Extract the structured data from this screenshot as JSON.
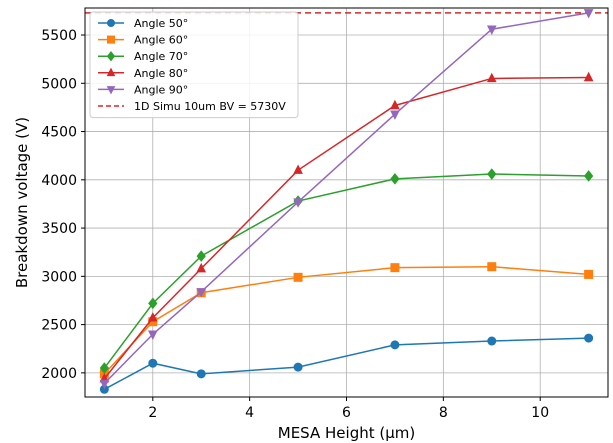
{
  "chart_data": {
    "type": "line",
    "title": "",
    "xlabel": "MESA Height (µm)",
    "ylabel": "Breakdown voltage (V)",
    "xlim": [
      0.6,
      11.4
    ],
    "ylim": [
      1750,
      5780
    ],
    "xticks": [
      2,
      4,
      6,
      8,
      10
    ],
    "yticks": [
      2000,
      2500,
      3000,
      3500,
      4000,
      4500,
      5000,
      5500
    ],
    "grid": true,
    "legend_position": "top-left",
    "x": [
      1,
      2,
      3,
      5,
      7,
      9,
      11
    ],
    "series": [
      {
        "name": "Angle 50°",
        "color": "#1f77b4",
        "marker": "circle",
        "values": [
          1830,
          2100,
          1990,
          2060,
          2290,
          2330,
          2360
        ]
      },
      {
        "name": "Angle 60°",
        "color": "#ff7f0e",
        "marker": "square",
        "values": [
          1990,
          2530,
          2830,
          2990,
          3090,
          3100,
          3020
        ]
      },
      {
        "name": "Angle 70°",
        "color": "#2ca02c",
        "marker": "diamond",
        "values": [
          2050,
          2720,
          3210,
          3780,
          4010,
          4060,
          4040
        ]
      },
      {
        "name": "Angle 80°",
        "color": "#d62728",
        "marker": "triangle-up",
        "values": [
          1940,
          2570,
          3080,
          4100,
          4770,
          5050,
          5060
        ]
      },
      {
        "name": "Angle 90°",
        "color": "#9467bd",
        "marker": "triangle-down",
        "values": [
          1890,
          2400,
          2840,
          3770,
          4680,
          5560,
          5730
        ]
      }
    ],
    "reference_line": {
      "name": "1D Simu 10um BV = 5730V",
      "value": 5730,
      "color": "#d62728",
      "style": "dashed"
    }
  }
}
